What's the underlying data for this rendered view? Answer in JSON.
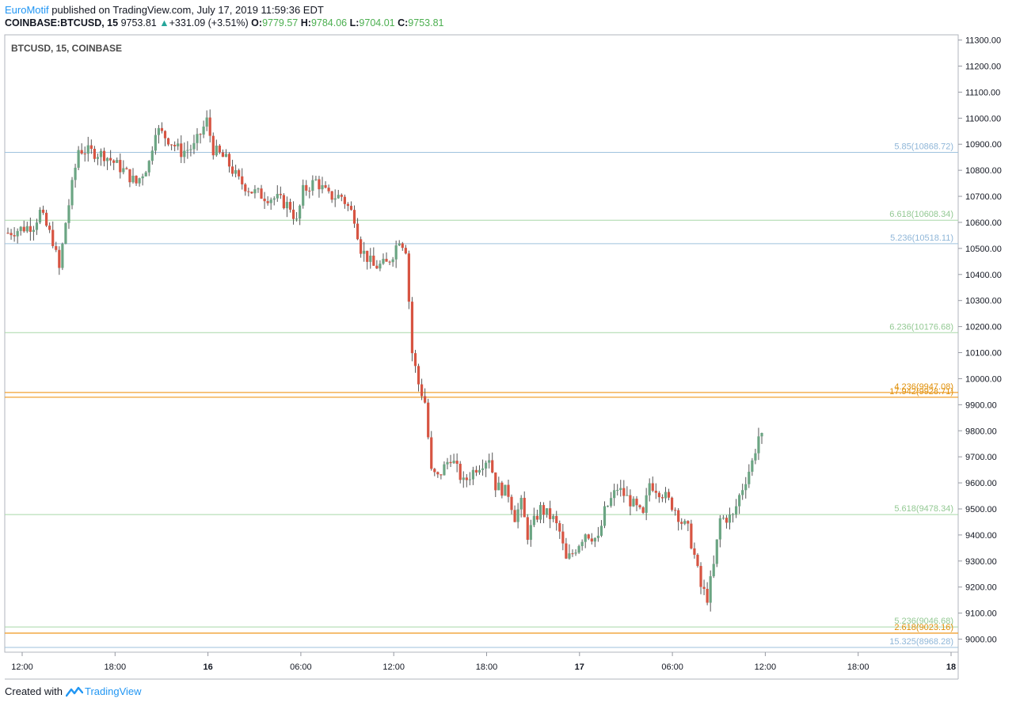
{
  "header": {
    "author": "EuroMotif",
    "published": "published on TradingView.com, July 17, 2019 11:59:36 EDT",
    "symbol": "COINBASE:BTCUSD, 15",
    "last": "9753.81",
    "change": "+331.09 (+3.51%)",
    "o_label": "O:",
    "o": "9779.57",
    "h_label": "H:",
    "h": "9784.06",
    "l_label": "L:",
    "l": "9704.01",
    "c_label": "C:",
    "c": "9753.81"
  },
  "footer": {
    "created": "Created with",
    "brand": "TradingView"
  },
  "colors": {
    "up": "#6ba583",
    "down": "#d75442",
    "grid": "#e6e6e6",
    "blue_level": "#9fc2de",
    "green_level": "#a8d8a8",
    "orange_level": "#f0a030"
  },
  "chart_data": {
    "type": "candlestick",
    "title": "BTCUSD, 15, COINBASE",
    "ylim": [
      8950,
      11320
    ],
    "y_ticks": [
      9000,
      9100,
      9200,
      9300,
      9400,
      9500,
      9600,
      9700,
      9800,
      9900,
      10000,
      10100,
      10200,
      10300,
      10400,
      10500,
      10600,
      10700,
      10800,
      10900,
      11000,
      11100,
      11200,
      11300
    ],
    "y_tick_labels": [
      "9000.00",
      "9100.00",
      "9200.00",
      "9300.00",
      "9400.00",
      "9500.00",
      "9600.00",
      "9700.00",
      "9800.00",
      "9900.00",
      "10000.00",
      "10100.00",
      "10200.00",
      "10300.00",
      "10400.00",
      "10500.00",
      "10600.00",
      "10700.00",
      "10800.00",
      "10900.00",
      "11000.00",
      "11100.00",
      "11200.00",
      "11300.00"
    ],
    "x_ticks": [
      "12:00",
      "18:00",
      "16",
      "06:00",
      "12:00",
      "18:00",
      "17",
      "06:00",
      "12:00",
      "18:00",
      "18"
    ],
    "x_ticks_bold": [
      false,
      false,
      true,
      false,
      false,
      false,
      true,
      false,
      false,
      false,
      true
    ],
    "levels": [
      {
        "label": "5.85(10868.72)",
        "value": 10868.72,
        "color": "blue"
      },
      {
        "label": "6.618(10608.34)",
        "value": 10608.34,
        "color": "green"
      },
      {
        "label": "5.236(10518.11)",
        "value": 10518.11,
        "color": "blue"
      },
      {
        "label": "6.236(10176.68)",
        "value": 10176.68,
        "color": "green"
      },
      {
        "label": "4.236(9947.08)",
        "value": 9947.08,
        "color": "orange"
      },
      {
        "label": "17.942(9928.71)",
        "value": 9928.71,
        "color": "orange"
      },
      {
        "label": "5.618(9478.34)",
        "value": 9478.34,
        "color": "green"
      },
      {
        "label": "5.236(9046.68)",
        "value": 9046.68,
        "color": "green"
      },
      {
        "label": "2.618(9023.16)",
        "value": 9023.16,
        "color": "orange"
      },
      {
        "label": "15.325(8968.28)",
        "value": 8968.28,
        "color": "blue"
      }
    ],
    "anchors": [
      [
        0,
        10560
      ],
      [
        8,
        10590
      ],
      [
        10,
        10640
      ],
      [
        14,
        10530
      ],
      [
        16,
        10420
      ],
      [
        18,
        10600
      ],
      [
        22,
        10880
      ],
      [
        30,
        10860
      ],
      [
        36,
        10800
      ],
      [
        40,
        10750
      ],
      [
        44,
        10830
      ],
      [
        46,
        10960
      ],
      [
        50,
        10920
      ],
      [
        54,
        10870
      ],
      [
        58,
        10890
      ],
      [
        62,
        10990
      ],
      [
        64,
        10880
      ],
      [
        68,
        10840
      ],
      [
        72,
        10760
      ],
      [
        76,
        10720
      ],
      [
        80,
        10700
      ],
      [
        84,
        10690
      ],
      [
        88,
        10660
      ],
      [
        90,
        10600
      ],
      [
        92,
        10720
      ],
      [
        96,
        10760
      ],
      [
        100,
        10700
      ],
      [
        104,
        10700
      ],
      [
        108,
        10620
      ],
      [
        110,
        10500
      ],
      [
        114,
        10430
      ],
      [
        118,
        10440
      ],
      [
        120,
        10480
      ],
      [
        122,
        10540
      ],
      [
        124,
        10500
      ],
      [
        126,
        10100
      ],
      [
        128,
        9980
      ],
      [
        130,
        9910
      ],
      [
        132,
        9640
      ],
      [
        134,
        9620
      ],
      [
        138,
        9700
      ],
      [
        142,
        9600
      ],
      [
        146,
        9660
      ],
      [
        150,
        9700
      ],
      [
        152,
        9590
      ],
      [
        156,
        9560
      ],
      [
        158,
        9470
      ],
      [
        160,
        9520
      ],
      [
        162,
        9400
      ],
      [
        166,
        9500
      ],
      [
        170,
        9460
      ],
      [
        172,
        9410
      ],
      [
        174,
        9300
      ],
      [
        176,
        9330
      ],
      [
        180,
        9410
      ],
      [
        184,
        9380
      ],
      [
        186,
        9490
      ],
      [
        190,
        9580
      ],
      [
        194,
        9530
      ],
      [
        198,
        9470
      ],
      [
        200,
        9600
      ],
      [
        204,
        9560
      ],
      [
        208,
        9500
      ],
      [
        210,
        9450
      ],
      [
        212,
        9420
      ],
      [
        214,
        9320
      ],
      [
        216,
        9200
      ],
      [
        218,
        9160
      ],
      [
        220,
        9280
      ],
      [
        222,
        9460
      ],
      [
        226,
        9470
      ],
      [
        228,
        9550
      ],
      [
        232,
        9680
      ],
      [
        234,
        9780
      ],
      [
        236,
        9760
      ]
    ],
    "bars_count": 236,
    "price_precision": 2
  }
}
